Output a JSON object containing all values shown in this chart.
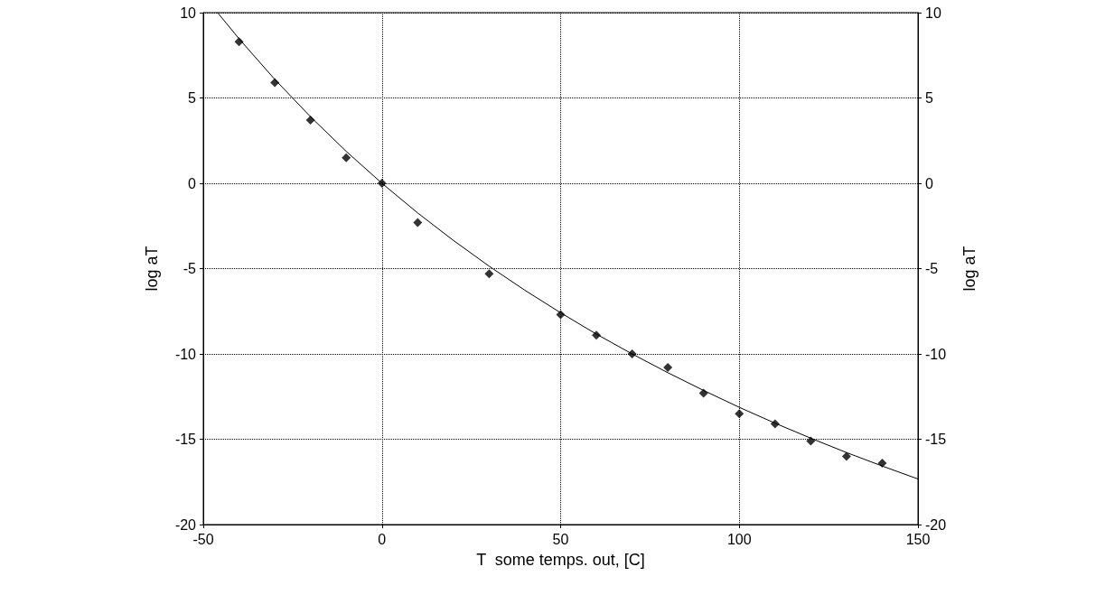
{
  "chart_data": {
    "type": "scatter",
    "xlabel": "T  some temps. out, [C]",
    "ylabel": "log aT",
    "y2label": "log aT",
    "xlim": [
      -50,
      150
    ],
    "xticks": [
      -50,
      0,
      50,
      100,
      150
    ],
    "ylim": [
      -20,
      10
    ],
    "yticks": [
      -20,
      -15,
      -10,
      -5,
      0,
      5,
      10
    ],
    "y2lim": [
      -20,
      10
    ],
    "y2ticks": [
      -20,
      -15,
      -10,
      -5,
      0,
      5,
      10
    ],
    "grid": true,
    "marker": "diamond",
    "series": [
      {
        "color": "#000000",
        "x": [
          -40,
          -30,
          -20,
          -10,
          0,
          10,
          30,
          50,
          60,
          70,
          80,
          90,
          100,
          110,
          120,
          130,
          140
        ],
        "values": [
          8.3,
          5.9,
          3.7,
          1.5,
          0,
          -2.3,
          -5.3,
          -7.7,
          -8.9,
          -10.0,
          -10.8,
          -12.3,
          -13.5,
          -14.1,
          -15.1,
          -16.0,
          -16.4
        ]
      },
      {
        "type": "line",
        "color": "#000000",
        "marker": "none",
        "line_style": "solid",
        "x": [
          -46,
          -40,
          -30,
          -20,
          -10,
          0,
          10,
          20,
          30,
          40,
          50,
          60,
          70,
          80,
          90,
          100,
          110,
          120,
          130,
          140,
          150
        ],
        "values": [
          10.0,
          8.47,
          6.09,
          3.9,
          1.87,
          0,
          -1.74,
          -3.35,
          -4.86,
          -6.27,
          -7.59,
          -8.84,
          -10.0,
          -11.1,
          -12.14,
          -13.13,
          -14.06,
          -14.94,
          -15.78,
          -16.57,
          -17.33
        ]
      }
    ]
  }
}
